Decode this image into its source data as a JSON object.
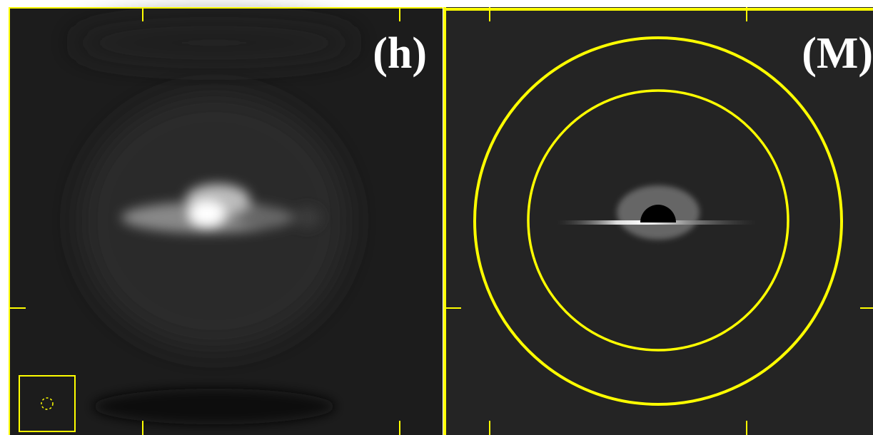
{
  "panels": [
    {
      "label": "(h)"
    },
    {
      "label": "(M)"
    }
  ]
}
